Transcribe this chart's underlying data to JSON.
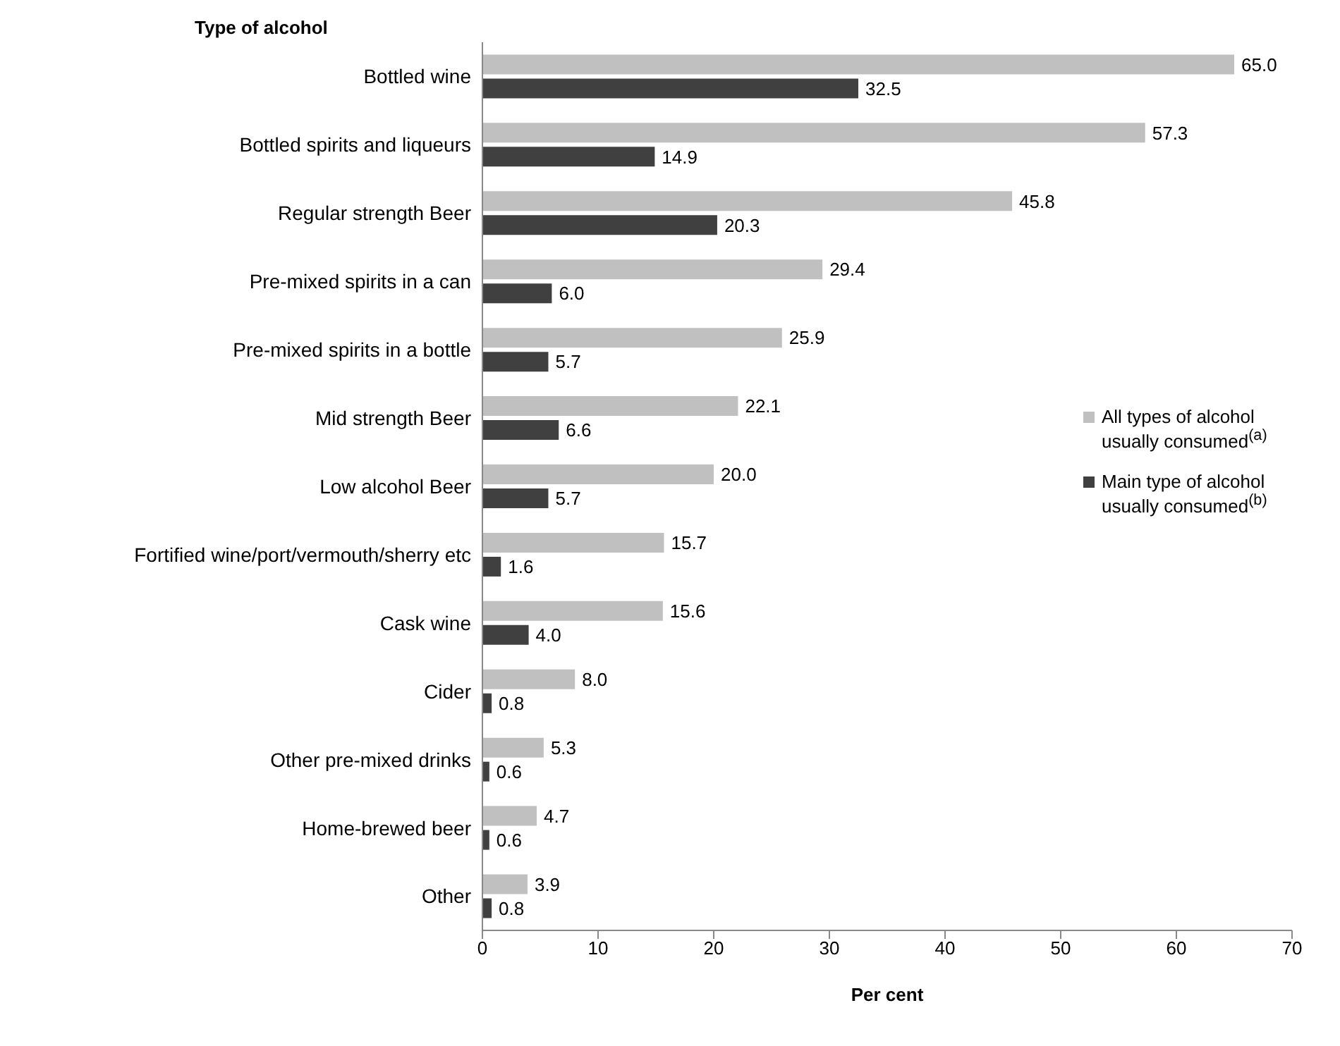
{
  "chart_data": {
    "type": "bar",
    "orientation": "horizontal",
    "ylabel": "Type of alcohol",
    "xlabel": "Per cent",
    "categories": [
      "Bottled wine",
      "Bottled spirits and liqueurs",
      "Regular strength Beer",
      "Pre-mixed spirits in a can",
      "Pre-mixed spirits in a bottle",
      "Mid strength Beer",
      "Low alcohol Beer",
      "Fortified wine/port/vermouth/sherry etc",
      "Cask wine",
      "Cider",
      "Other pre-mixed drinks",
      "Home-brewed beer",
      "Other"
    ],
    "series": [
      {
        "name": "All types of alcohol usually consumed$^{(a)}$",
        "color": "#c0c0c0",
        "values": [
          65.0,
          57.3,
          45.8,
          29.4,
          25.9,
          22.1,
          20.0,
          15.7,
          15.6,
          8.0,
          5.3,
          4.7,
          3.9
        ],
        "value_labels": [
          "65.0",
          "57.3",
          "45.8",
          "29.4",
          "25.9",
          "22.1",
          "20.0",
          "15.7",
          "15.6",
          "8.0",
          "5.3",
          "4.7",
          "3.9"
        ]
      },
      {
        "name": "Main type of alcohol usually consumed$^{(b)}$",
        "color": "#404040",
        "values": [
          32.5,
          14.9,
          20.3,
          6.0,
          5.7,
          6.6,
          5.7,
          1.6,
          4.0,
          0.8,
          0.6,
          0.6,
          0.8
        ],
        "value_labels": [
          "32.5",
          "14.9",
          "20.3",
          "6.0",
          "5.7",
          "6.6",
          "5.7",
          "1.6",
          "4.0",
          "0.8",
          "0.6",
          "0.6",
          "0.8"
        ]
      }
    ],
    "xlim": [
      0,
      70
    ],
    "xticks": [
      0,
      10,
      20,
      30,
      40,
      50,
      60,
      70
    ],
    "grid": false,
    "legend": "right"
  }
}
